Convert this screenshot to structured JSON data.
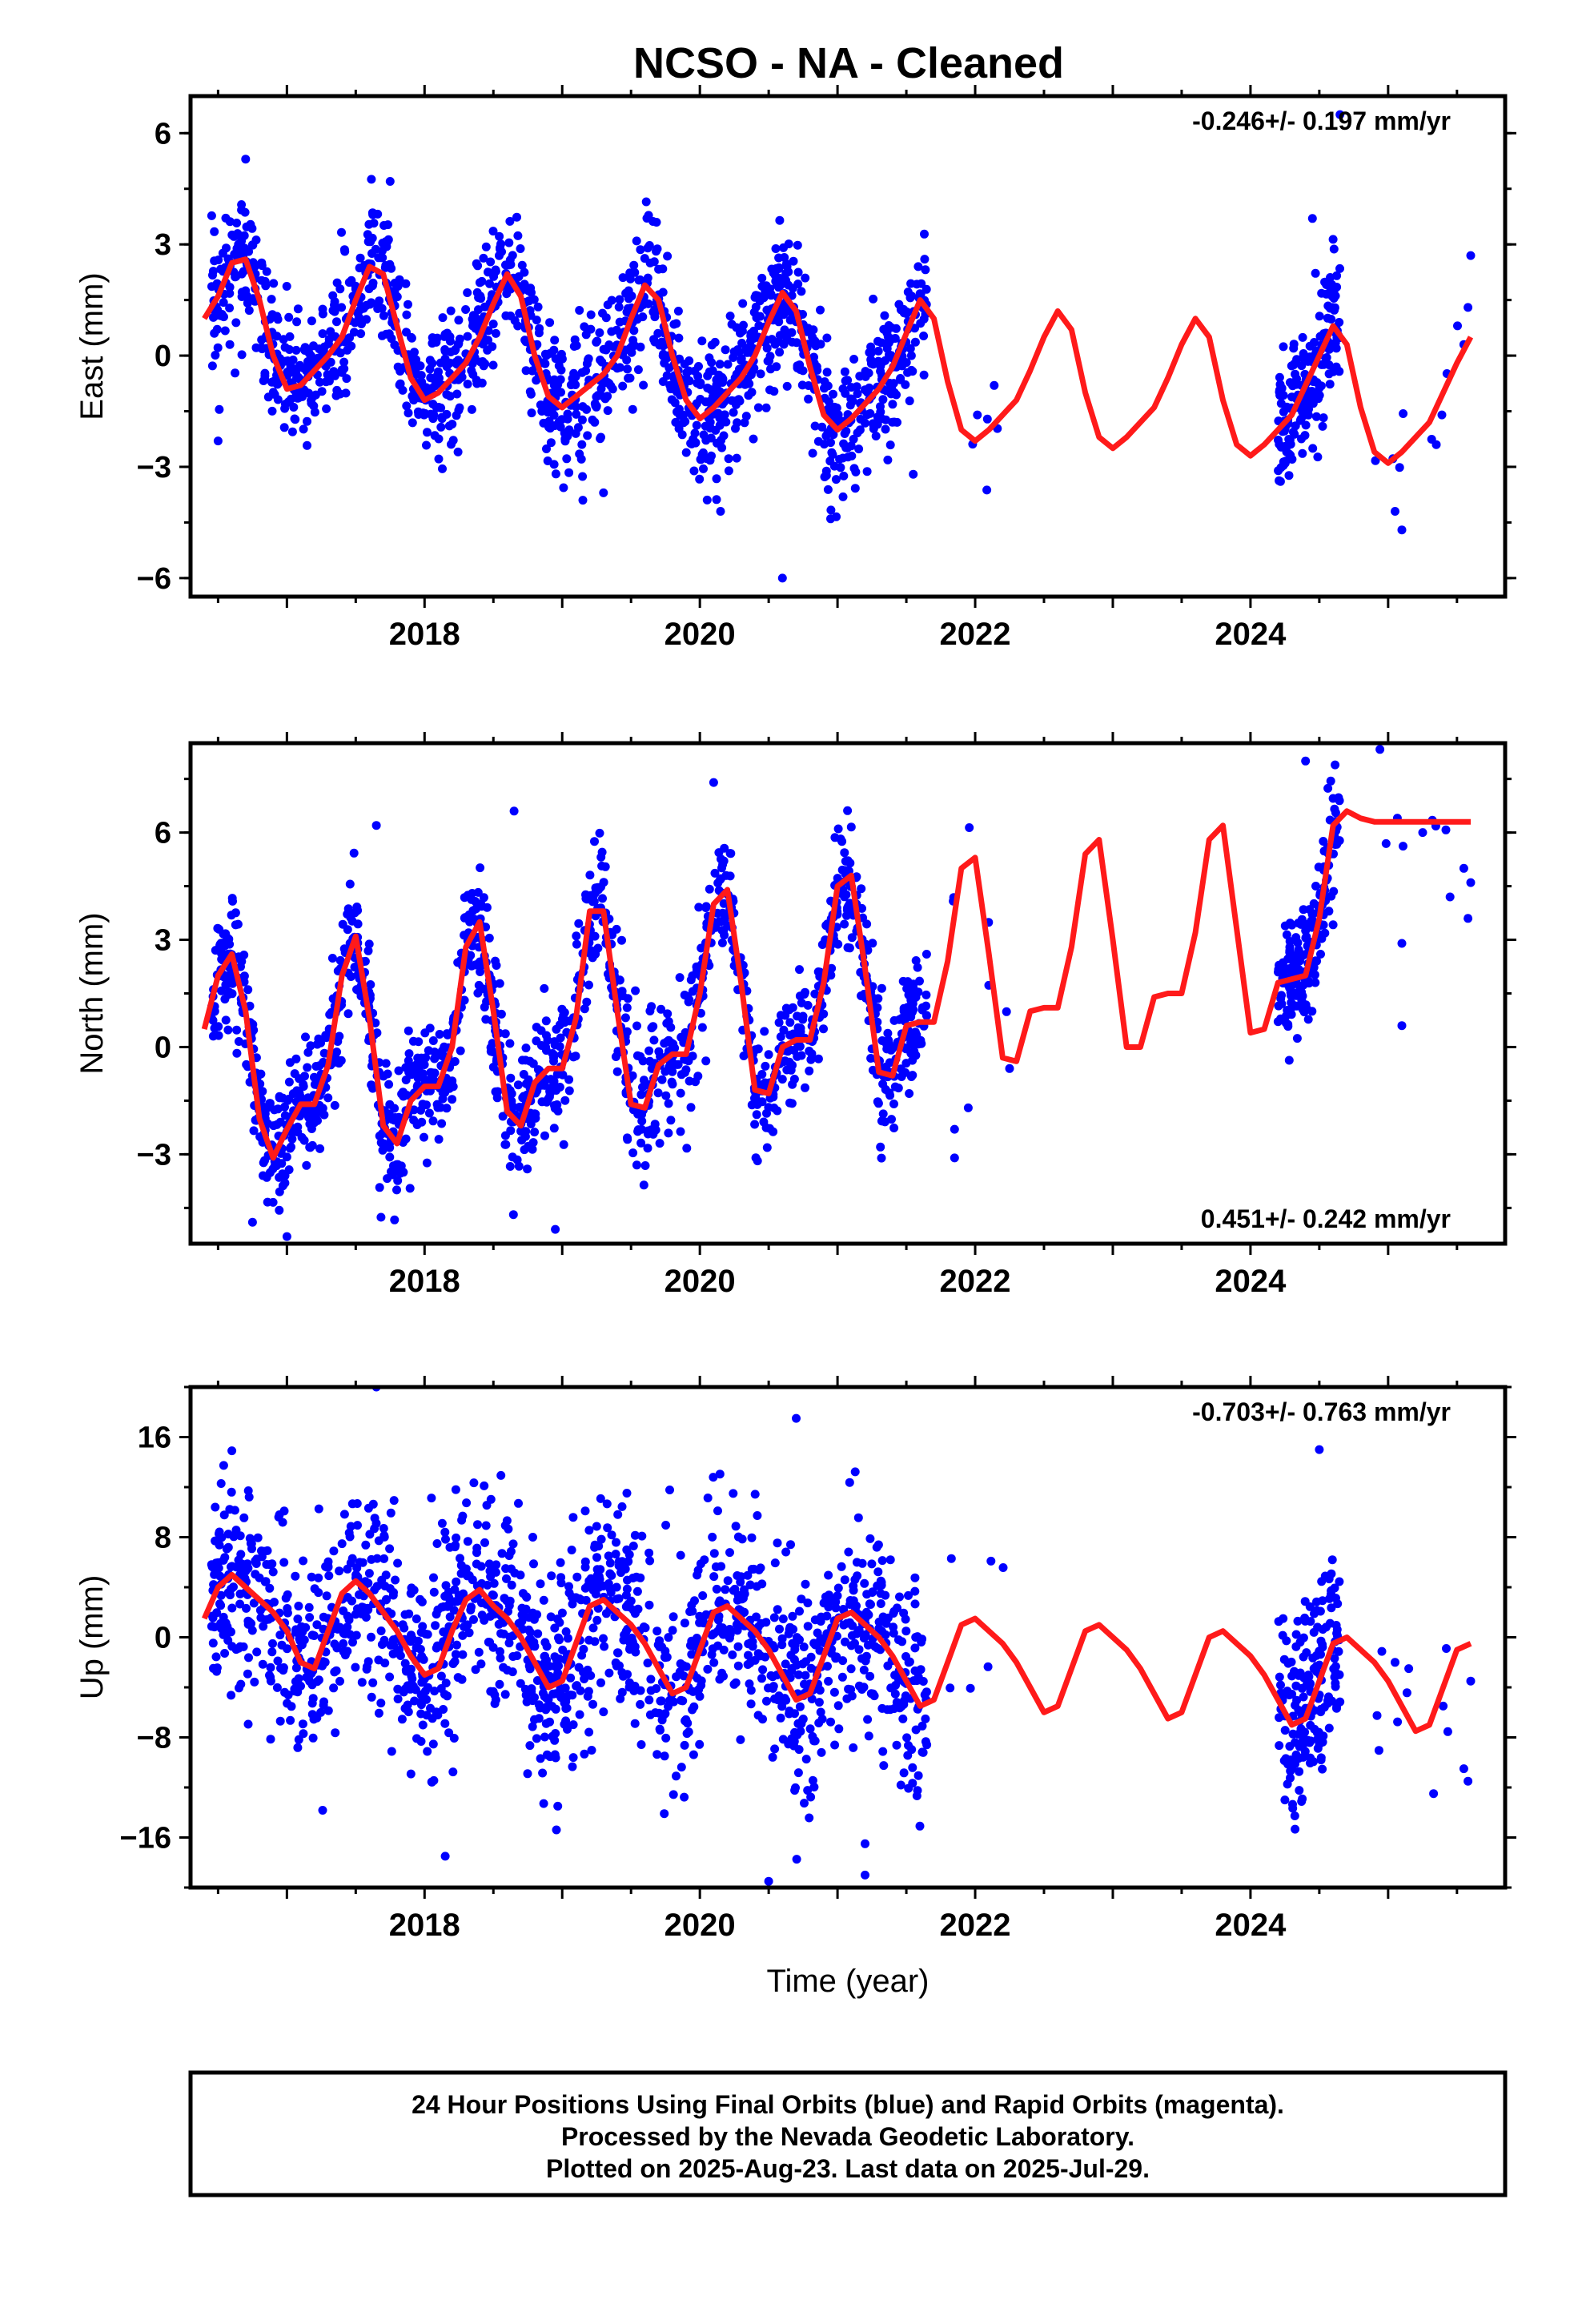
{
  "title": "NCSO  - NA - Cleaned",
  "footer": {
    "lines": [
      "24 Hour Positions Using Final Orbits (blue) and Rapid Orbits (magenta).",
      "Processed by the Nevada Geodetic Laboratory.",
      "Plotted on 2025-Aug-23. Last data on 2025-Jul-29."
    ]
  },
  "colors": {
    "points": "#0000ff",
    "model": "#ff1a1a",
    "axes": "#000000",
    "background": "#ffffff"
  },
  "chart_data": [
    {
      "type": "scatter",
      "ylabel": "East (mm)",
      "xlabel": "",
      "xlim": [
        2016.3,
        2025.85
      ],
      "ylim": [
        -6.5,
        7.0
      ],
      "xticks": [
        2018,
        2020,
        2022,
        2024
      ],
      "yticks": [
        -6,
        -3,
        0,
        3,
        6
      ],
      "ytick_labels": [
        "−6",
        "−3",
        "0",
        "3",
        "6"
      ],
      "rate": "-0.246+/- 0.197 mm/yr",
      "rate_position": "top-right",
      "model": {
        "name": "",
        "x": [
          2016.4,
          2016.5,
          2016.6,
          2016.7,
          2016.8,
          2016.9,
          2017.0,
          2017.1,
          2017.2,
          2017.3,
          2017.4,
          2017.5,
          2017.6,
          2017.7,
          2017.8,
          2017.9,
          2018.0,
          2018.1,
          2018.2,
          2018.3,
          2018.4,
          2018.5,
          2018.6,
          2018.7,
          2018.8,
          2018.9,
          2019.0,
          2019.1,
          2019.2,
          2019.3,
          2019.4,
          2019.5,
          2019.6,
          2019.7,
          2019.8,
          2019.9,
          2020.0,
          2020.1,
          2020.2,
          2020.3,
          2020.4,
          2020.5,
          2020.6,
          2020.7,
          2020.8,
          2020.9,
          2021.0,
          2021.1,
          2021.2,
          2021.3,
          2021.4,
          2021.5,
          2021.6,
          2021.7,
          2021.8,
          2021.9,
          2022.0,
          2022.1,
          2022.2,
          2022.3,
          2022.4,
          2022.5,
          2022.6,
          2022.7,
          2022.8,
          2022.9,
          2023.0,
          2023.1,
          2023.2,
          2023.3,
          2023.4,
          2023.5,
          2023.6,
          2023.7,
          2023.8,
          2023.9,
          2024.0,
          2024.1,
          2024.2,
          2024.3,
          2024.4,
          2024.5,
          2024.6,
          2024.7,
          2024.8,
          2024.9,
          2025.0,
          2025.1,
          2025.2,
          2025.3,
          2025.4,
          2025.5,
          2025.6
        ],
        "y": [
          1.0,
          1.6,
          2.5,
          2.6,
          1.5,
          0.0,
          -0.9,
          -0.8,
          -0.4,
          0.0,
          0.5,
          1.5,
          2.4,
          2.2,
          0.8,
          -0.6,
          -1.2,
          -1.0,
          -0.6,
          -0.2,
          0.5,
          1.4,
          2.2,
          1.6,
          0.0,
          -1.1,
          -1.4,
          -1.1,
          -0.8,
          -0.5,
          0.0,
          1.0,
          1.9,
          1.5,
          0.0,
          -1.2,
          -1.7,
          -1.4,
          -1.0,
          -0.6,
          0.0,
          0.9,
          1.7,
          1.2,
          -0.3,
          -1.6,
          -2.0,
          -1.7,
          -1.3,
          -0.9,
          -0.3,
          0.6,
          1.5,
          1.0,
          -0.7,
          -2.0,
          -2.3,
          -2.0,
          -1.6,
          -1.2,
          -0.4,
          0.5,
          1.2,
          0.7,
          -1.0,
          -2.2,
          -2.5,
          -2.2,
          -1.8,
          -1.4,
          -0.6,
          0.3,
          1.0,
          0.5,
          -1.2,
          -2.4,
          -2.7,
          -2.4,
          -2.0,
          -1.6,
          -0.8,
          0.0,
          0.8,
          0.3,
          -1.4,
          -2.6,
          -2.9,
          -2.6,
          -2.2,
          -1.8,
          -1.0,
          -0.2,
          0.5
        ]
      },
      "observations": {
        "x_range": [
          2016.45,
          2025.6
        ],
        "gap_note": "",
        "segments": [
          {
            "x": [
              2016.45,
              2021.65
            ],
            "density": 1500
          },
          {
            "x": [
              2021.8,
              2022.3
            ],
            "density": 6
          },
          {
            "x": [
              2024.2,
              2024.65
            ],
            "density": 180
          },
          {
            "x": [
              2024.9,
              2025.6
            ],
            "density": 8
          }
        ],
        "scatter_sd": 0.9,
        "outliers": [
          [
            2016.5,
            -2.3
          ],
          [
            2016.7,
            5.3
          ],
          [
            2017.75,
            4.7
          ],
          [
            2019.15,
            -3.9
          ],
          [
            2019.3,
            -3.7
          ],
          [
            2020.15,
            -4.2
          ],
          [
            2020.6,
            -6.0
          ],
          [
            2020.95,
            -4.4
          ],
          [
            2021.55,
            -3.2
          ],
          [
            2024.45,
            3.7
          ],
          [
            2024.65,
            6.5
          ],
          [
            2025.05,
            -4.2
          ],
          [
            2025.1,
            -4.7
          ],
          [
            2025.35,
            -2.4
          ],
          [
            2025.55,
            0.3
          ],
          [
            2025.58,
            1.3
          ],
          [
            2025.6,
            2.7
          ]
        ]
      }
    },
    {
      "type": "scatter",
      "ylabel": "North (mm)",
      "xlabel": "",
      "xlim": [
        2016.3,
        2025.85
      ],
      "ylim": [
        -5.5,
        8.5
      ],
      "xticks": [
        2018,
        2020,
        2022,
        2024
      ],
      "yticks": [
        -3,
        0,
        3,
        6
      ],
      "ytick_labels": [
        "−3",
        "0",
        "3",
        "6"
      ],
      "rate": "0.451+/- 0.242 mm/yr",
      "rate_position": "bottom-right",
      "model": {
        "name": "",
        "x": [
          2016.4,
          2016.5,
          2016.6,
          2016.7,
          2016.8,
          2016.9,
          2017.0,
          2017.1,
          2017.2,
          2017.3,
          2017.4,
          2017.5,
          2017.6,
          2017.7,
          2017.8,
          2017.9,
          2018.0,
          2018.1,
          2018.2,
          2018.3,
          2018.4,
          2018.5,
          2018.6,
          2018.7,
          2018.8,
          2018.9,
          2019.0,
          2019.1,
          2019.2,
          2019.3,
          2019.4,
          2019.5,
          2019.6,
          2019.7,
          2019.8,
          2019.9,
          2020.0,
          2020.1,
          2020.2,
          2020.3,
          2020.4,
          2020.5,
          2020.6,
          2020.7,
          2020.8,
          2020.9,
          2021.0,
          2021.1,
          2021.2,
          2021.3,
          2021.4,
          2021.5,
          2021.6,
          2021.7,
          2021.8,
          2021.9,
          2022.0,
          2022.1,
          2022.2,
          2022.3,
          2022.4,
          2022.5,
          2022.6,
          2022.7,
          2022.8,
          2022.9,
          2023.0,
          2023.1,
          2023.2,
          2023.3,
          2023.4,
          2023.5,
          2023.6,
          2023.7,
          2023.8,
          2023.9,
          2024.0,
          2024.1,
          2024.2,
          2024.3,
          2024.4,
          2024.5,
          2024.6,
          2024.7,
          2024.8,
          2024.9,
          2025.0,
          2025.1,
          2025.2,
          2025.3,
          2025.4,
          2025.5,
          2025.6
        ],
        "y": [
          0.5,
          2.0,
          2.6,
          1.0,
          -2.0,
          -3.1,
          -2.3,
          -1.6,
          -1.6,
          -0.5,
          2.0,
          3.1,
          0.8,
          -2.2,
          -2.7,
          -1.5,
          -1.1,
          -1.1,
          0.0,
          2.8,
          3.5,
          1.0,
          -1.8,
          -2.2,
          -1.0,
          -0.6,
          -0.6,
          0.8,
          3.8,
          3.8,
          1.0,
          -1.6,
          -1.7,
          -0.5,
          -0.2,
          -0.2,
          1.5,
          4.0,
          4.4,
          1.8,
          -1.2,
          -1.3,
          0.0,
          0.2,
          0.2,
          1.8,
          4.5,
          4.8,
          2.2,
          -0.7,
          -0.8,
          0.6,
          0.7,
          0.7,
          2.4,
          5.0,
          5.3,
          2.6,
          -0.3,
          -0.4,
          1.0,
          1.1,
          1.1,
          2.8,
          5.4,
          5.8,
          3.0,
          0.0,
          0.0,
          1.4,
          1.5,
          1.5,
          3.2,
          5.8,
          6.2,
          3.3,
          0.4,
          0.5,
          1.8,
          1.9,
          2.0,
          3.6,
          6.2,
          6.6,
          6.4,
          6.3,
          6.3,
          6.3,
          6.3,
          6.3,
          6.3,
          6.3,
          6.3
        ]
      },
      "observations": {
        "x_range": [
          2016.45,
          2025.6
        ],
        "gap_note": "",
        "segments": [
          {
            "x": [
              2016.45,
              2021.65
            ],
            "density": 1500
          },
          {
            "x": [
              2021.8,
              2022.3
            ],
            "density": 6
          },
          {
            "x": [
              2024.2,
              2024.65
            ],
            "density": 180
          },
          {
            "x": [
              2024.9,
              2025.6
            ],
            "density": 8
          }
        ],
        "scatter_sd": 0.9,
        "outliers": [
          [
            2016.75,
            -4.9
          ],
          [
            2017.0,
            -5.3
          ],
          [
            2017.65,
            6.2
          ],
          [
            2018.65,
            6.6
          ],
          [
            2018.95,
            -5.1
          ],
          [
            2020.1,
            7.4
          ],
          [
            2021.85,
            -2.3
          ],
          [
            2021.85,
            -3.1
          ],
          [
            2021.95,
            -1.7
          ],
          [
            2022.25,
            -0.6
          ],
          [
            2024.4,
            8.0
          ],
          [
            2025.1,
            2.9
          ],
          [
            2025.1,
            0.6
          ],
          [
            2025.45,
            4.2
          ],
          [
            2025.55,
            5.0
          ],
          [
            2025.58,
            3.6
          ],
          [
            2025.6,
            4.6
          ]
        ]
      }
    },
    {
      "type": "scatter",
      "ylabel": "Up (mm)",
      "xlabel": "Time (year)",
      "xlim": [
        2016.3,
        2025.85
      ],
      "ylim": [
        -20.0,
        20.0
      ],
      "xticks": [
        2018,
        2020,
        2022,
        2024
      ],
      "yticks": [
        -16,
        -8,
        0,
        8,
        16
      ],
      "ytick_labels": [
        "−16",
        "−8",
        "0",
        "8",
        "16"
      ],
      "rate": "-0.703+/- 0.763 mm/yr",
      "rate_position": "top-right",
      "model": {
        "name": "",
        "x": [
          2016.4,
          2016.5,
          2016.6,
          2016.7,
          2016.8,
          2016.9,
          2017.0,
          2017.1,
          2017.2,
          2017.3,
          2017.4,
          2017.5,
          2017.6,
          2017.7,
          2017.8,
          2017.9,
          2018.0,
          2018.1,
          2018.2,
          2018.3,
          2018.4,
          2018.5,
          2018.6,
          2018.7,
          2018.8,
          2018.9,
          2019.0,
          2019.1,
          2019.2,
          2019.3,
          2019.4,
          2019.5,
          2019.6,
          2019.7,
          2019.8,
          2019.9,
          2020.0,
          2020.1,
          2020.2,
          2020.3,
          2020.4,
          2020.5,
          2020.6,
          2020.7,
          2020.8,
          2020.9,
          2021.0,
          2021.1,
          2021.2,
          2021.3,
          2021.4,
          2021.5,
          2021.6,
          2021.7,
          2021.8,
          2021.9,
          2022.0,
          2022.1,
          2022.2,
          2022.3,
          2022.4,
          2022.5,
          2022.6,
          2022.7,
          2022.8,
          2022.9,
          2023.0,
          2023.1,
          2023.2,
          2023.3,
          2023.4,
          2023.5,
          2023.6,
          2023.7,
          2023.8,
          2023.9,
          2024.0,
          2024.1,
          2024.2,
          2024.3,
          2024.4,
          2024.5,
          2024.6,
          2024.7,
          2024.8,
          2024.9,
          2025.0,
          2025.1,
          2025.2,
          2025.3,
          2025.4,
          2025.5,
          2025.6
        ],
        "y": [
          1.5,
          4.0,
          5.0,
          4.0,
          3.0,
          2.0,
          0.5,
          -2.0,
          -2.5,
          0.5,
          3.5,
          4.5,
          3.5,
          2.0,
          0.5,
          -1.5,
          -3.0,
          -2.5,
          0.5,
          3.0,
          3.8,
          2.5,
          1.5,
          0.0,
          -2.0,
          -4.0,
          -3.5,
          -0.5,
          2.5,
          3.0,
          2.0,
          1.0,
          -0.5,
          -2.5,
          -4.5,
          -4.0,
          -1.0,
          2.0,
          2.5,
          1.5,
          0.5,
          -1.0,
          -3.0,
          -5.0,
          -4.5,
          -1.5,
          1.5,
          2.0,
          1.0,
          0.0,
          -1.5,
          -3.5,
          -5.5,
          -5.0,
          -2.0,
          1.0,
          1.5,
          0.5,
          -0.5,
          -2.0,
          -4.0,
          -6.0,
          -5.5,
          -2.5,
          0.5,
          1.0,
          0.0,
          -1.0,
          -2.5,
          -4.5,
          -6.5,
          -6.0,
          -3.0,
          0.0,
          0.5,
          -0.5,
          -1.5,
          -3.0,
          -5.0,
          -7.0,
          -6.5,
          -3.5,
          -0.5,
          0.0,
          -1.0,
          -2.0,
          -3.5,
          -5.5,
          -7.5,
          -7.0,
          -4.0,
          -1.0,
          -0.5
        ]
      },
      "observations": {
        "x_range": [
          2016.45,
          2025.6
        ],
        "gap_note": "",
        "segments": [
          {
            "x": [
              2016.45,
              2021.65
            ],
            "density": 1500
          },
          {
            "x": [
              2021.8,
              2022.3
            ],
            "density": 6
          },
          {
            "x": [
              2024.2,
              2024.65
            ],
            "density": 180
          },
          {
            "x": [
              2024.9,
              2025.6
            ],
            "density": 8
          }
        ],
        "scatter_sd": 4.2,
        "outliers": [
          [
            2017.65,
            20.0
          ],
          [
            2018.15,
            -17.5
          ],
          [
            2020.5,
            -19.5
          ],
          [
            2020.7,
            17.5
          ],
          [
            2021.2,
            -19.0
          ],
          [
            2021.2,
            -16.5
          ],
          [
            2024.25,
            -13.0
          ],
          [
            2024.5,
            15.0
          ],
          [
            2025.05,
            -2.0
          ],
          [
            2025.15,
            -2.5
          ],
          [
            2025.4,
            -5.5
          ],
          [
            2025.55,
            -10.5
          ],
          [
            2025.58,
            -11.5
          ],
          [
            2025.6,
            -3.5
          ]
        ]
      }
    }
  ]
}
